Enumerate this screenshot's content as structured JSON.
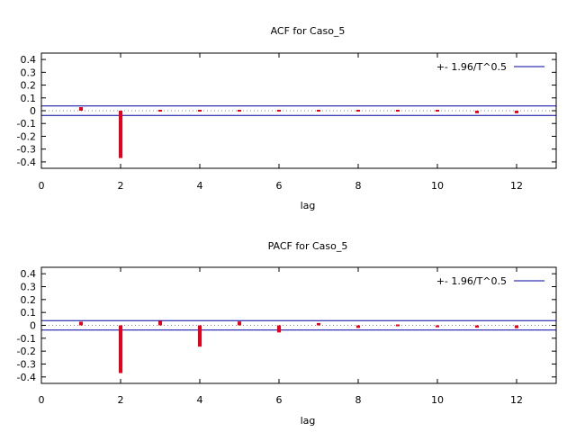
{
  "chart_data": [
    {
      "type": "bar",
      "title": "ACF for Caso_5",
      "xlabel": "lag",
      "ylabel": "",
      "xlim": [
        0,
        13
      ],
      "ylim": [
        -0.45,
        0.45
      ],
      "x_ticks": [
        0,
        2,
        4,
        6,
        8,
        10,
        12
      ],
      "y_ticks": [
        -0.4,
        -0.3,
        -0.2,
        -0.1,
        0,
        0.1,
        0.2,
        0.3,
        0.4
      ],
      "x_tick_labels": [
        "0",
        "2",
        "4",
        "6",
        "8",
        "10",
        "12"
      ],
      "y_tick_labels": [
        "-0.4",
        "-0.3",
        "-0.2",
        "-0.1",
        "0",
        "0.1",
        "0.2",
        "0.3",
        "0.4"
      ],
      "legend": "+- 1.96/T^0.5",
      "legend_position": "top-right",
      "band": 0.037,
      "lags": [
        1,
        2,
        3,
        4,
        5,
        6,
        7,
        8,
        9,
        10,
        11,
        12
      ],
      "values": [
        0.028,
        -0.37,
        0.001,
        0.0,
        0.004,
        0.01,
        0.0,
        -0.005,
        -0.012,
        -0.006,
        -0.02,
        -0.02
      ]
    },
    {
      "type": "bar",
      "title": "PACF for Caso_5",
      "xlabel": "lag",
      "ylabel": "",
      "xlim": [
        0,
        13
      ],
      "ylim": [
        -0.45,
        0.45
      ],
      "x_ticks": [
        0,
        2,
        4,
        6,
        8,
        10,
        12
      ],
      "y_ticks": [
        -0.4,
        -0.3,
        -0.2,
        -0.1,
        0,
        0.1,
        0.2,
        0.3,
        0.4
      ],
      "x_tick_labels": [
        "0",
        "2",
        "4",
        "6",
        "8",
        "10",
        "12"
      ],
      "y_tick_labels": [
        "-0.4",
        "-0.3",
        "-0.2",
        "-0.1",
        "0",
        "0.1",
        "0.2",
        "0.3",
        "0.4"
      ],
      "legend": "+- 1.96/T^0.5",
      "legend_position": "top-right",
      "band": 0.037,
      "lags": [
        1,
        2,
        3,
        4,
        5,
        6,
        7,
        8,
        9,
        10,
        11,
        12
      ],
      "values": [
        0.028,
        -0.37,
        0.035,
        -0.165,
        0.03,
        -0.055,
        0.018,
        -0.02,
        0.0,
        -0.015,
        -0.018,
        -0.022
      ]
    }
  ],
  "colors": {
    "bar": "#e8001b",
    "band_line": "#0000a0",
    "zero_line": "#888888",
    "axis": "#000000"
  }
}
